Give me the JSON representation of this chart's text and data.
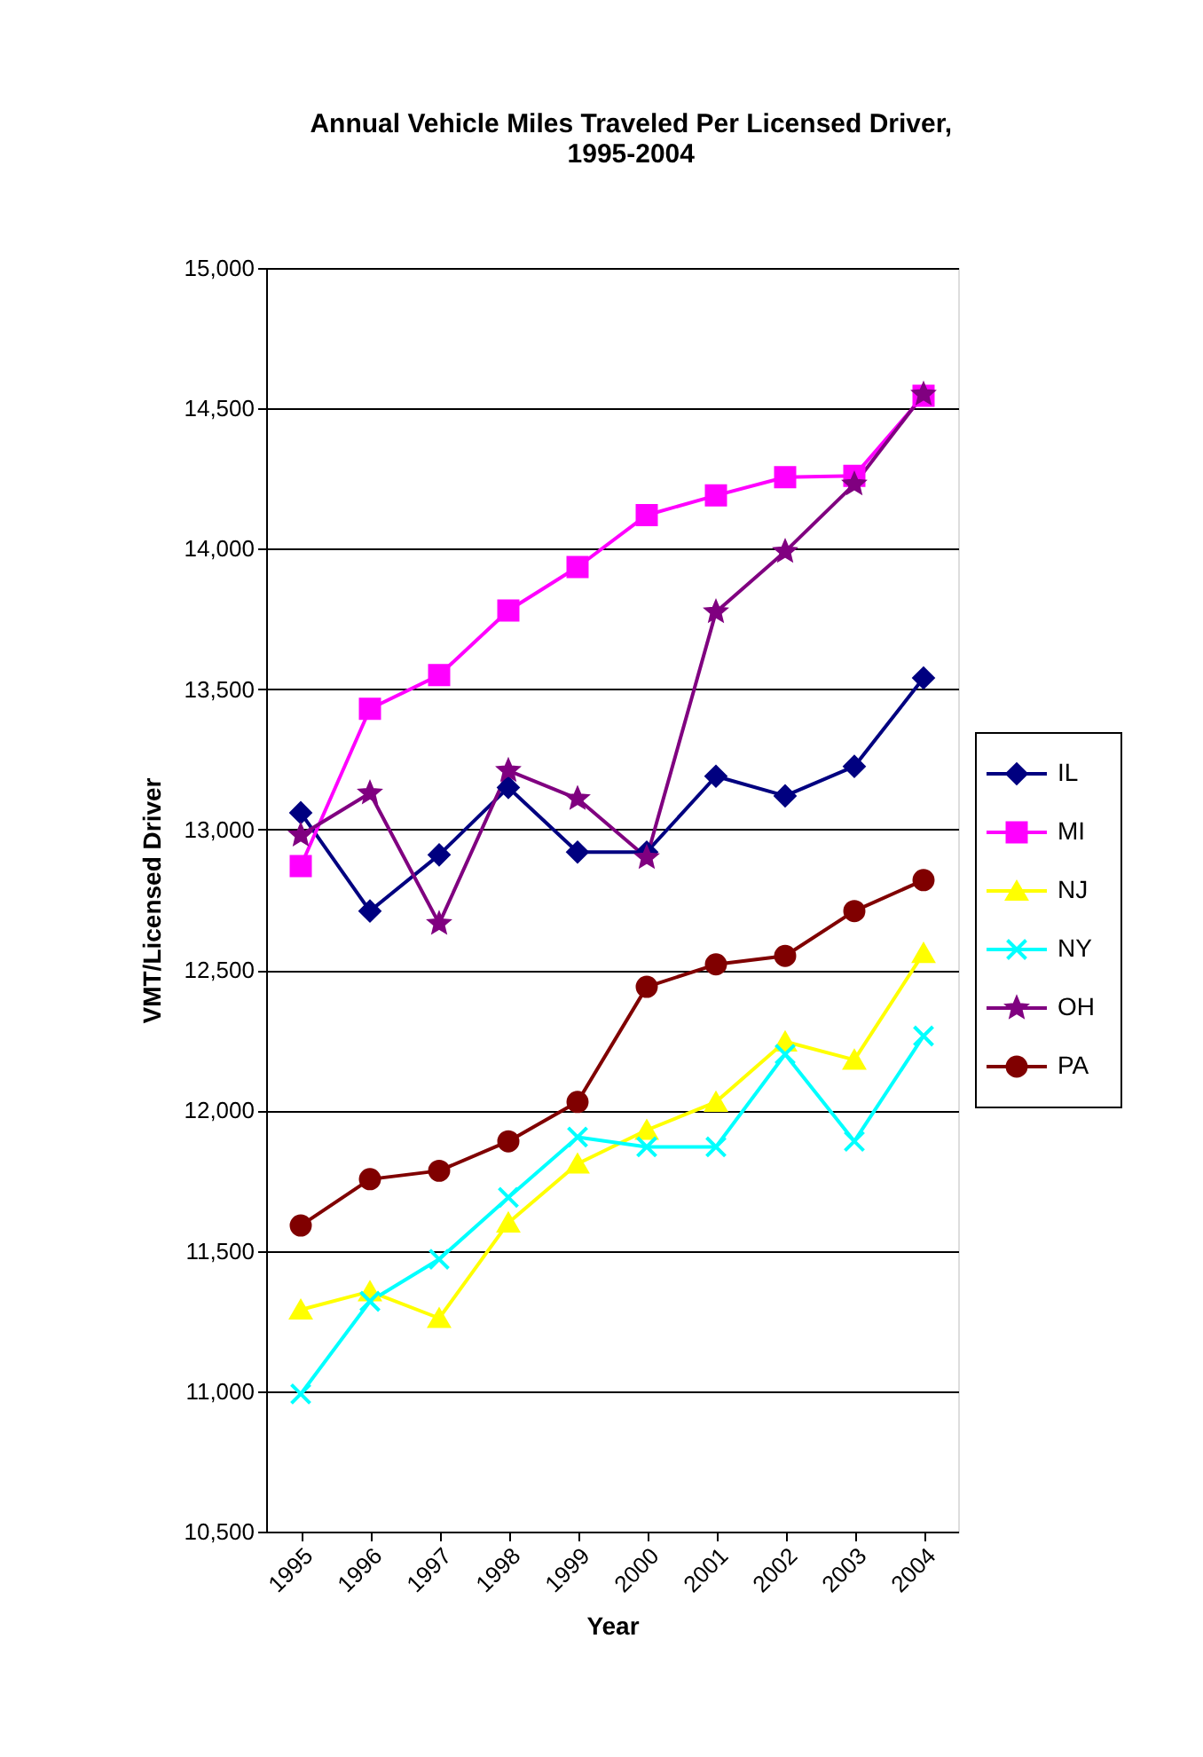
{
  "chart_data": {
    "type": "line",
    "title": "Annual Vehicle Miles Traveled Per Licensed Driver, 1995-2004",
    "xlabel": "Year",
    "ylabel": "VMT/Licensed Driver",
    "categories": [
      "1995",
      "1996",
      "1997",
      "1998",
      "1999",
      "2000",
      "2001",
      "2002",
      "2003",
      "2004"
    ],
    "ylim": [
      10500,
      15000
    ],
    "yticks": [
      {
        "value": 10500,
        "label": "10,500"
      },
      {
        "value": 11000,
        "label": "11,000"
      },
      {
        "value": 11500,
        "label": "11,500"
      },
      {
        "value": 12000,
        "label": "12,000"
      },
      {
        "value": 12500,
        "label": "12,500"
      },
      {
        "value": 13000,
        "label": "13,000"
      },
      {
        "value": 13500,
        "label": "13,500"
      },
      {
        "value": 14000,
        "label": "14,000"
      },
      {
        "value": 14500,
        "label": "14,500"
      },
      {
        "value": 15000,
        "label": "15,000"
      }
    ],
    "grid": "y",
    "legend": "right",
    "line_style": "solid",
    "series": [
      {
        "name": "IL",
        "color": "#000080",
        "marker": "diamond",
        "values": [
          13060,
          12710,
          12910,
          13150,
          12920,
          12920,
          13190,
          13120,
          13225,
          13540
        ]
      },
      {
        "name": "MI",
        "color": "#ff00ff",
        "marker": "square",
        "values": [
          12870,
          13430,
          13550,
          13780,
          13935,
          14120,
          14190,
          14255,
          14260,
          14545
        ]
      },
      {
        "name": "NJ",
        "color": "#ffff00",
        "marker": "triangle",
        "values": [
          11290,
          11355,
          11260,
          11600,
          11810,
          11930,
          12030,
          12245,
          12180,
          12560
        ]
      },
      {
        "name": "NY",
        "color": "#00ffff",
        "marker": "cross",
        "values": [
          10990,
          11320,
          11470,
          11690,
          11905,
          11870,
          11870,
          12200,
          11890,
          12265
        ]
      },
      {
        "name": "OH",
        "color": "#800080",
        "marker": "star",
        "values": [
          12980,
          13130,
          12665,
          13210,
          13110,
          12900,
          13775,
          13990,
          14230,
          14550
        ]
      },
      {
        "name": "PA",
        "color": "#800000",
        "marker": "circle",
        "values": [
          11590,
          11755,
          11785,
          11890,
          12030,
          12440,
          12520,
          12550,
          12710,
          12820
        ]
      }
    ]
  }
}
